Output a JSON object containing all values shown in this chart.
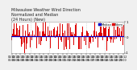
{
  "title_line1": "Milwaukee Weather Wind Direction",
  "title_line2": "Normalized and Median",
  "title_line3": "(24 Hours) (New)",
  "background_color": "#f0f0f0",
  "plot_bg_color": "#ffffff",
  "bar_color": "#dd0000",
  "median_color": "#0000cc",
  "grid_color": "#bbbbbb",
  "n_bars": 144,
  "y_min": -1.0,
  "y_max": 1.0,
  "median_value": 0.08,
  "title_fontsize": 3.5,
  "tick_fontsize": 2.8,
  "legend_fontsize": 2.5,
  "seed": 42
}
